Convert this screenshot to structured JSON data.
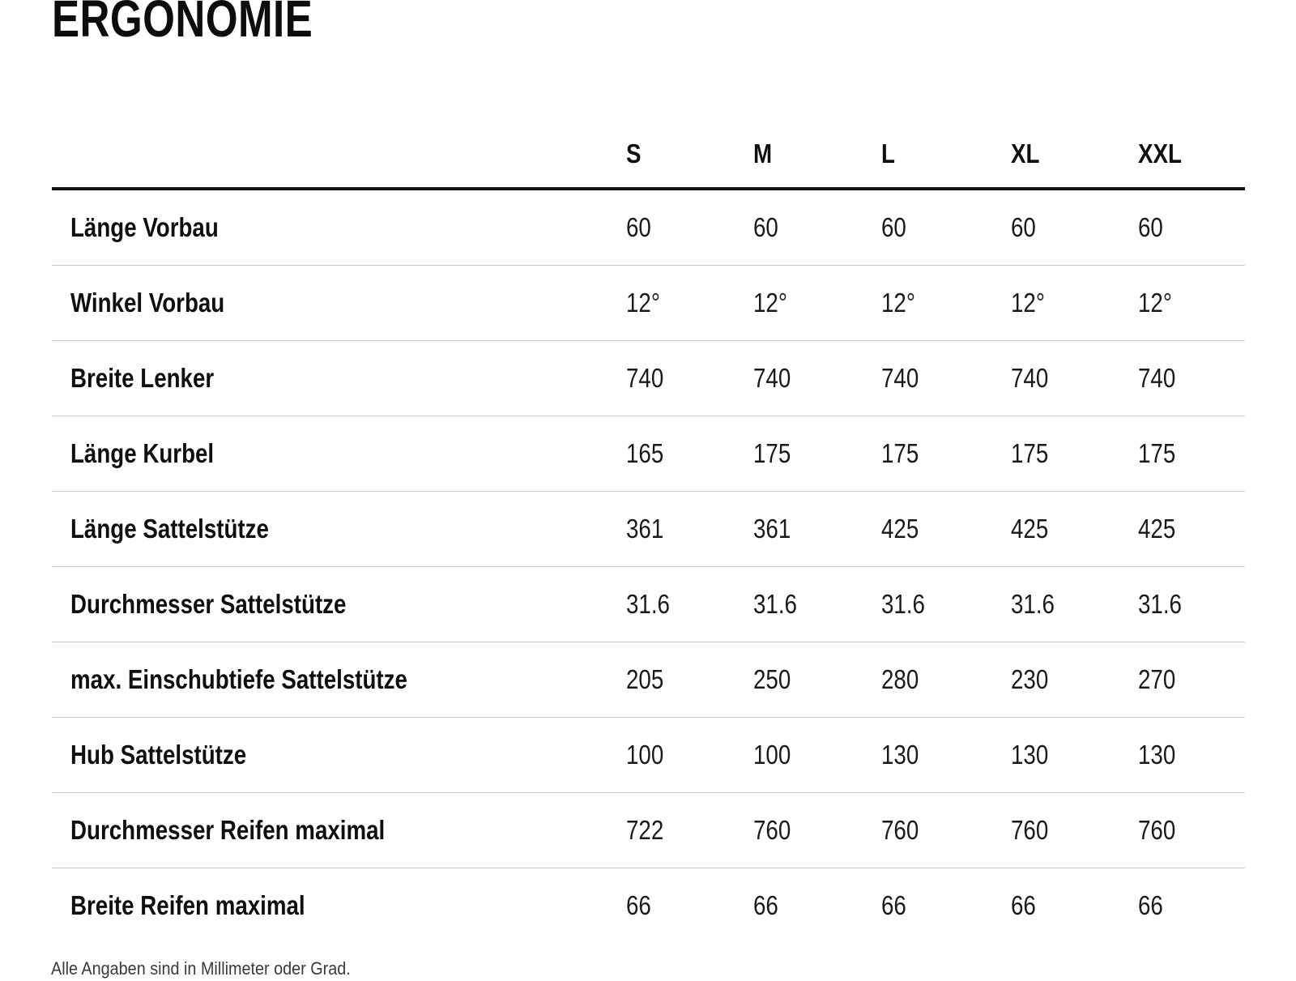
{
  "page": {
    "title": "ERGONOMIE",
    "footnote": "Alle Angaben sind in Millimeter oder Grad."
  },
  "table": {
    "columns": [
      "S",
      "M",
      "L",
      "XL",
      "XXL"
    ],
    "rows": [
      {
        "label": "Länge Vorbau",
        "values": [
          "60",
          "60",
          "60",
          "60",
          "60"
        ]
      },
      {
        "label": "Winkel Vorbau",
        "values": [
          "12°",
          "12°",
          "12°",
          "12°",
          "12°"
        ]
      },
      {
        "label": "Breite Lenker",
        "values": [
          "740",
          "740",
          "740",
          "740",
          "740"
        ]
      },
      {
        "label": "Länge Kurbel",
        "values": [
          "165",
          "175",
          "175",
          "175",
          "175"
        ]
      },
      {
        "label": "Länge Sattelstütze",
        "values": [
          "361",
          "361",
          "425",
          "425",
          "425"
        ]
      },
      {
        "label": "Durchmesser Sattelstütze",
        "values": [
          "31.6",
          "31.6",
          "31.6",
          "31.6",
          "31.6"
        ]
      },
      {
        "label": "max. Einschubtiefe Sattelstütze",
        "values": [
          "205",
          "250",
          "280",
          "230",
          "270"
        ]
      },
      {
        "label": "Hub Sattelstütze",
        "values": [
          "100",
          "100",
          "130",
          "130",
          "130"
        ]
      },
      {
        "label": "Durchmesser Reifen maximal",
        "values": [
          "722",
          "760",
          "760",
          "760",
          "760"
        ]
      },
      {
        "label": "Breite Reifen maximal",
        "values": [
          "66",
          "66",
          "66",
          "66",
          "66"
        ]
      }
    ]
  },
  "colors": {
    "text": "#111111",
    "header_rule": "#141414",
    "row_separator": "#c6cacc",
    "footnote_text": "#3a3a3a",
    "background": "#ffffff"
  }
}
